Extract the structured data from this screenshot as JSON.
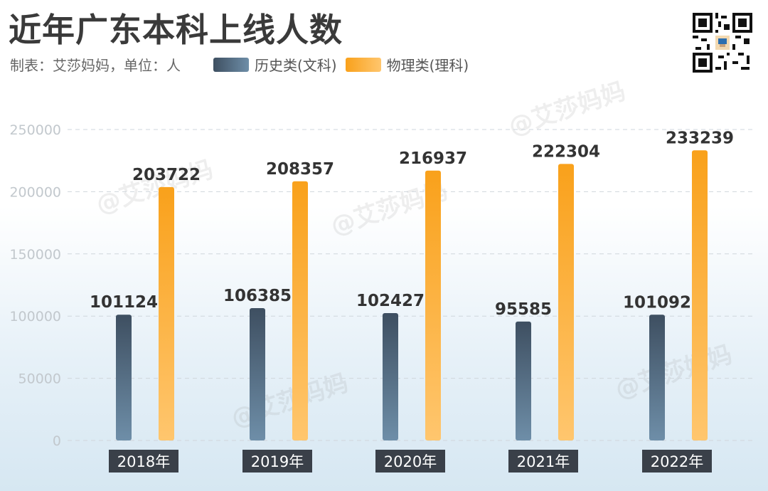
{
  "header": {
    "title": "近年广东本科上线人数",
    "subtitle": "制表：艾莎妈妈，单位：人"
  },
  "watermark": "@艾莎妈妈",
  "colors": {
    "history_top": "#3e4f61",
    "history_bottom": "#6e8ea8",
    "physics_top": "#f9a11b",
    "physics_bottom": "#ffc66e",
    "year_label_bg": "#3a4049"
  },
  "icons": {
    "qr": "qr-code-icon"
  },
  "chart_data": {
    "type": "bar",
    "categories": [
      "2018年",
      "2019年",
      "2020年",
      "2021年",
      "2022年"
    ],
    "series": [
      {
        "name": "历史类(文科)",
        "values": [
          101124,
          106385,
          102427,
          95585,
          101092
        ]
      },
      {
        "name": "物理类(理科)",
        "values": [
          203722,
          208357,
          216937,
          222304,
          233239
        ]
      }
    ],
    "ylim": [
      0,
      250000
    ],
    "yticks": [
      "0",
      "50000",
      "100000",
      "150000",
      "200000",
      "250000"
    ],
    "grid": true,
    "legend": "top"
  }
}
